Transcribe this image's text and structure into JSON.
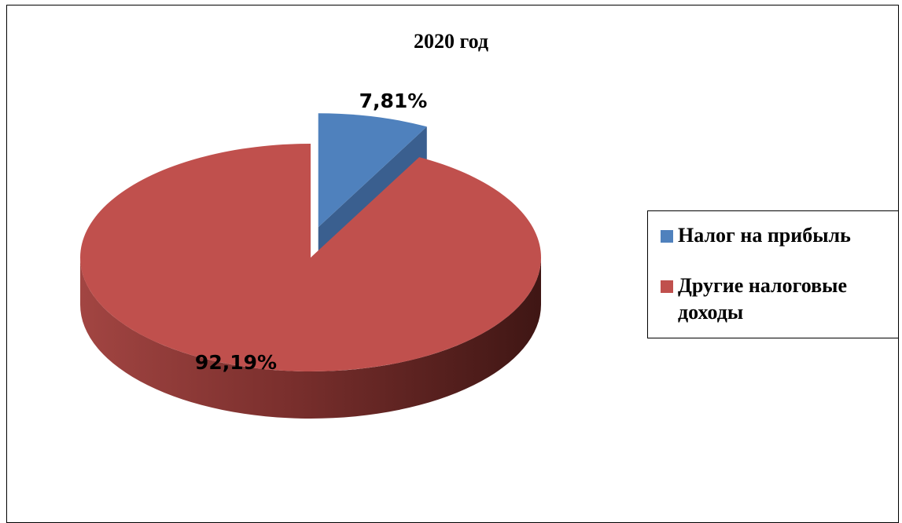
{
  "chart_data": {
    "type": "pie",
    "title": "2020 год",
    "categories": [
      "Налог на прибыль",
      "Другие налоговые доходы"
    ],
    "values": [
      7.81,
      92.19
    ],
    "labels": [
      "7,81%",
      "92,19%"
    ],
    "colors": [
      "#4f81bd",
      "#c0504d"
    ],
    "legend": "right",
    "style": "3d-exploded"
  }
}
